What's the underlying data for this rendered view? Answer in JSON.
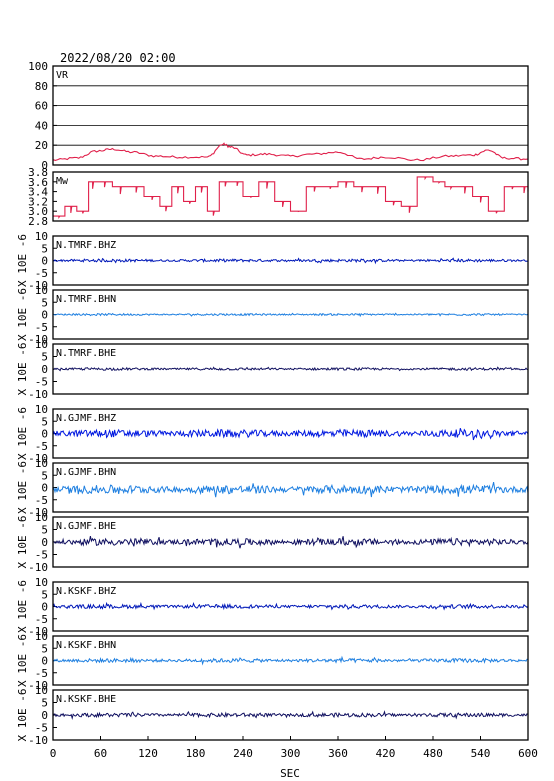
{
  "chart_data": {
    "type": "line",
    "title": "2022/08/20 02:00",
    "xlabel": "SEC",
    "xlim": [
      0,
      600
    ],
    "xticks": [
      0,
      60,
      120,
      180,
      240,
      300,
      360,
      420,
      480,
      540,
      600
    ],
    "panels": [
      {
        "name": "VR",
        "ylim": [
          0,
          100
        ],
        "yticks": [
          0,
          20,
          40,
          60,
          80,
          100
        ],
        "grid": true,
        "color": "#e0204a",
        "style": "smooth",
        "series": {
          "x": [
            0,
            30,
            55,
            75,
            100,
            130,
            160,
            195,
            215,
            225,
            245,
            270,
            300,
            330,
            360,
            390,
            420,
            460,
            500,
            530,
            550,
            570,
            600
          ],
          "y": [
            5,
            7,
            14,
            16,
            13,
            9,
            8,
            8,
            21,
            18,
            10,
            11,
            9,
            11,
            13,
            6,
            8,
            5,
            9,
            10,
            15,
            7,
            6
          ]
        }
      },
      {
        "name": "Mw",
        "ylim": [
          2.8,
          3.8
        ],
        "yticks": [
          2.8,
          3.0,
          3.2,
          3.4,
          3.6,
          3.8
        ],
        "grid": false,
        "color": "#e0204a",
        "style": "steps",
        "series": {
          "x": [
            0,
            15,
            30,
            45,
            55,
            75,
            95,
            115,
            135,
            150,
            165,
            180,
            195,
            210,
            225,
            240,
            260,
            280,
            300,
            320,
            340,
            360,
            380,
            400,
            420,
            440,
            460,
            480,
            495,
            510,
            530,
            550,
            570,
            590,
            600
          ],
          "y": [
            2.9,
            3.1,
            3.0,
            3.6,
            3.6,
            3.5,
            3.5,
            3.3,
            3.1,
            3.5,
            3.2,
            3.5,
            3.0,
            3.6,
            3.6,
            3.3,
            3.6,
            3.2,
            3.0,
            3.5,
            3.5,
            3.6,
            3.5,
            3.5,
            3.2,
            3.1,
            3.7,
            3.6,
            3.5,
            3.5,
            3.3,
            3.0,
            3.5,
            3.5,
            3.4
          ]
        }
      },
      {
        "name": "N.TMRF.BHZ",
        "ylabel": "X 10E -6",
        "ylim": [
          -10,
          10
        ],
        "yticks": [
          -10,
          -5,
          0,
          5,
          10
        ],
        "color": "#0018b8",
        "amplitude": 0.6
      },
      {
        "name": "N.TMRF.BHN",
        "ylabel": "X 10E -6",
        "ylim": [
          -10,
          10
        ],
        "yticks": [
          -10,
          -5,
          0,
          5,
          10
        ],
        "color": "#1e7fe0",
        "amplitude": 0.4
      },
      {
        "name": "N.TMRF.BHE",
        "ylabel": "X 10E -6",
        "ylim": [
          -10,
          10
        ],
        "yticks": [
          -10,
          -5,
          0,
          5,
          10
        ],
        "color": "#101060",
        "amplitude": 0.5
      },
      {
        "name": "N.GJMF.BHZ",
        "ylabel": "X 10E -6",
        "ylim": [
          -10,
          10
        ],
        "yticks": [
          -10,
          -5,
          0,
          5,
          10
        ],
        "color": "#0018e0",
        "amplitude": 1.6
      },
      {
        "name": "N.GJMF.BHN",
        "ylabel": "X 10E -6",
        "ylim": [
          -10,
          10
        ],
        "yticks": [
          -10,
          -5,
          0,
          5,
          10
        ],
        "color": "#1e7fe0",
        "amplitude": 1.8,
        "offset": -0.8
      },
      {
        "name": "N.GJMF.BHE",
        "ylabel": "X 10E -6",
        "ylim": [
          -10,
          10
        ],
        "yticks": [
          -10,
          -5,
          0,
          5,
          10
        ],
        "color": "#101060",
        "amplitude": 1.4
      },
      {
        "name": "N.KSKF.BHZ",
        "ylabel": "X 10E -6",
        "ylim": [
          -10,
          10
        ],
        "yticks": [
          -10,
          -5,
          0,
          5,
          10
        ],
        "color": "#0018b8",
        "amplitude": 0.8
      },
      {
        "name": "N.KSKF.BHN",
        "ylabel": "X 10E -6",
        "ylim": [
          -10,
          10
        ],
        "yticks": [
          -10,
          -5,
          0,
          5,
          10
        ],
        "color": "#1e7fe0",
        "amplitude": 0.8
      },
      {
        "name": "N.KSKF.BHE",
        "ylabel": "X 10E -6",
        "ylim": [
          -10,
          10
        ],
        "yticks": [
          -10,
          -5,
          0,
          5,
          10
        ],
        "color": "#101060",
        "amplitude": 0.8
      }
    ]
  }
}
